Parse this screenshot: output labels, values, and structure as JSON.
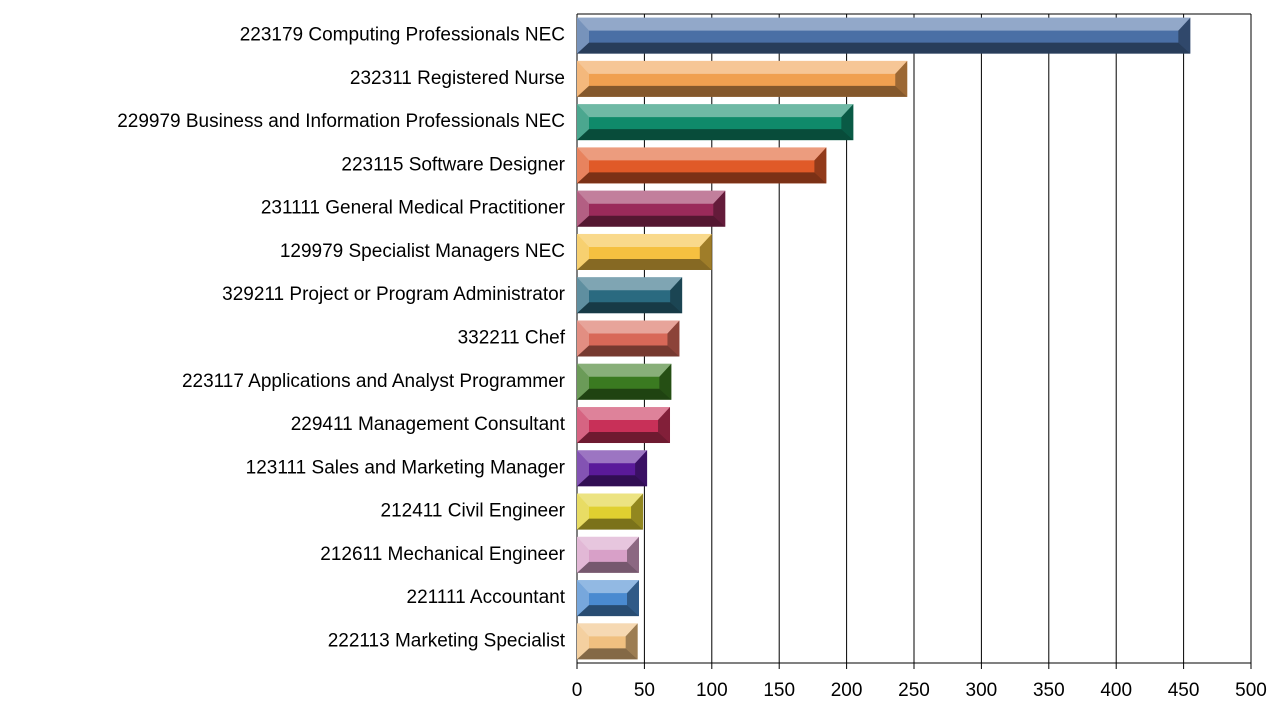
{
  "chart_data": {
    "type": "bar",
    "orientation": "horizontal",
    "categories": [
      "223179 Computing Professionals NEC",
      "232311 Registered Nurse",
      "229979 Business and Information Professionals NEC",
      "223115 Software Designer",
      "231111 General Medical Practitioner",
      "129979 Specialist Managers NEC",
      "329211 Project or Program Administrator",
      "332211 Chef",
      "223117 Applications and Analyst Programmer",
      "229411 Management Consultant",
      "123111 Sales and Marketing Manager",
      "212411 Civil Engineer",
      "212611 Mechanical Engineer",
      "221111 Accountant",
      "222113 Marketing Specialist"
    ],
    "values": [
      455,
      245,
      205,
      185,
      110,
      100,
      78,
      76,
      70,
      69,
      52,
      49,
      46,
      46,
      45
    ],
    "colors": [
      "#4a6fa5",
      "#f0a050",
      "#0f8a6a",
      "#e05a28",
      "#9a2a5a",
      "#f5c040",
      "#2a6a80",
      "#d86858",
      "#3a7a20",
      "#c83058",
      "#5a1a9a",
      "#e0d030",
      "#d8a0c8",
      "#4a8ad0",
      "#f0c080"
    ],
    "xlim": [
      0,
      500
    ],
    "xticks": [
      0,
      50,
      100,
      150,
      200,
      250,
      300,
      350,
      400,
      450,
      500
    ],
    "grid": true
  }
}
